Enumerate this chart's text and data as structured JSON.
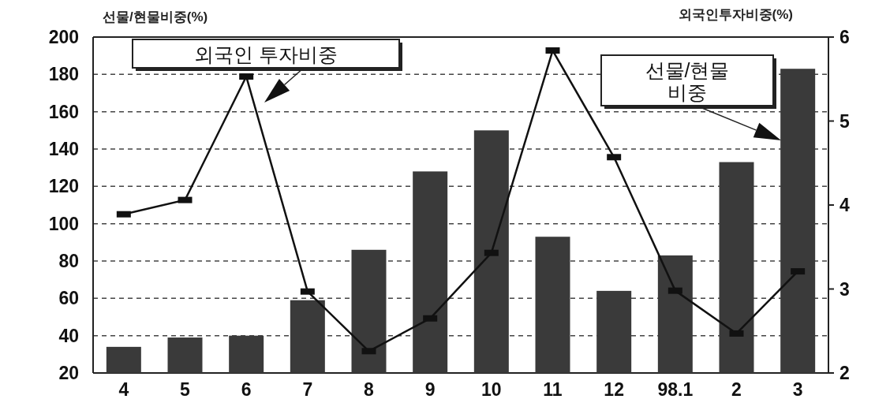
{
  "chart_data": {
    "type": "bar",
    "categories": [
      "4",
      "5",
      "6",
      "7",
      "8",
      "9",
      "10",
      "11",
      "12",
      "98.1",
      "2",
      "3"
    ],
    "ylabel": "선물/현물비중(%)",
    "y2label": "외국인투자비중(%)",
    "ylim": [
      20,
      200
    ],
    "yticks": [
      20,
      40,
      60,
      80,
      100,
      120,
      140,
      160,
      180,
      200
    ],
    "y2lim": [
      2,
      6
    ],
    "y2ticks": [
      2,
      3,
      4,
      5,
      6
    ],
    "grid": "y",
    "legend": false,
    "marker": "square",
    "line_style": "solid",
    "series": [
      {
        "name": "선물/현물 비중",
        "color": "#3a3a3a",
        "values": [
          34,
          39,
          40,
          59,
          86,
          128,
          150,
          93,
          64,
          83,
          133,
          183
        ]
      },
      {
        "name": "외국인 투자비중",
        "type": "line",
        "axis": "y2",
        "color": "#111111",
        "values": [
          3.89,
          4.06,
          5.53,
          2.97,
          2.26,
          2.65,
          3.43,
          5.84,
          4.57,
          2.98,
          2.47,
          3.21
        ]
      }
    ]
  }
}
